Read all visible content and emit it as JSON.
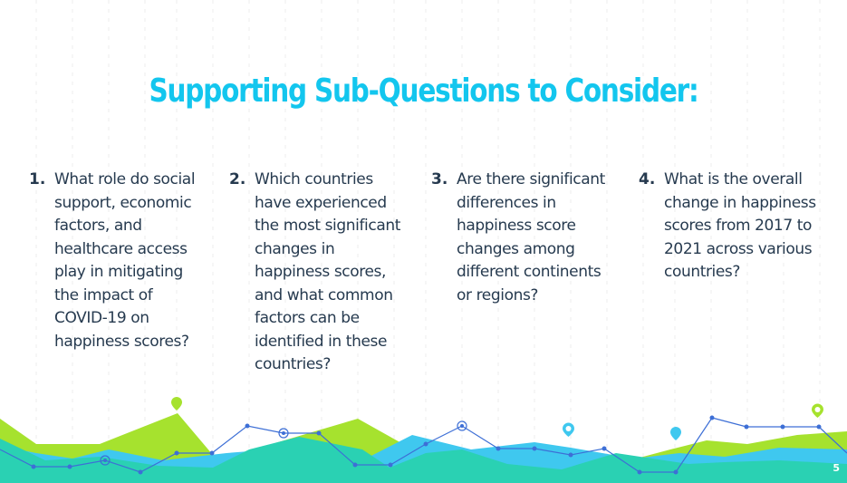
{
  "slide": {
    "title": "Supporting Sub-Questions to Consider:",
    "page_number": "5"
  },
  "questions": [
    {
      "number": "1.",
      "lines": [
        "What role do social",
        "support, economic",
        "factors, and",
        "healthcare access",
        "play in mitigating",
        "the impact of",
        "COVID-19 on",
        "happiness scores?"
      ]
    },
    {
      "number": "2.",
      "lines": [
        "Which countries",
        "have experienced",
        "the most significant",
        "changes in",
        "happiness scores,",
        "and what common",
        "factors can be",
        "identified in these",
        "countries?"
      ]
    },
    {
      "number": "3.",
      "lines": [
        "Are there significant",
        "differences in",
        "happiness score",
        "changes among",
        "different continents",
        "or regions?"
      ]
    },
    {
      "number": "4.",
      "lines": [
        "What is the overall",
        "change in happiness",
        "scores from 2017 to",
        "2021 across various",
        "countries?"
      ]
    }
  ],
  "colors": {
    "title": "#13c6ee",
    "text": "#263a4f",
    "lime": "#a6e22e",
    "teal": "#2ad1b3",
    "sky": "#3fc8ef",
    "line": "#3d6fd6"
  },
  "icons": [
    "location-pin-icon"
  ]
}
